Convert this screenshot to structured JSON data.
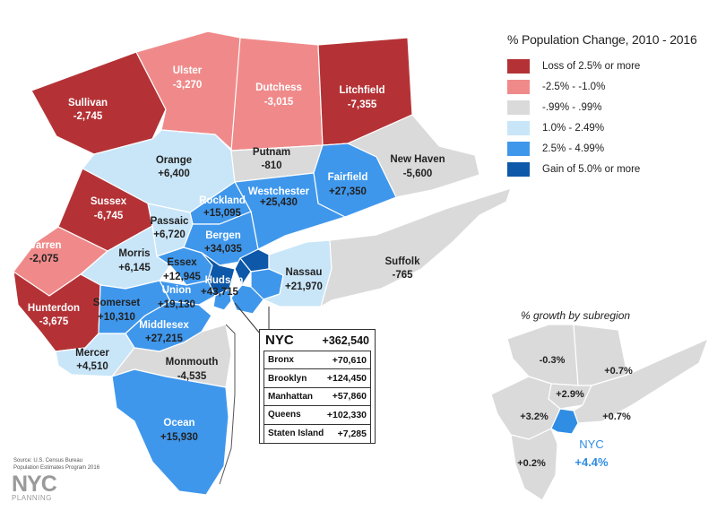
{
  "legend": {
    "title": "% Population Change, 2010 - 2016",
    "items": [
      {
        "label": "Loss of 2.5% or more",
        "color": "#b43236"
      },
      {
        "label": "-2.5% - -1.0%",
        "color": "#f08a8a"
      },
      {
        "label": "-.99% - .99%",
        "color": "#dadada"
      },
      {
        "label": "1.0% - 2.49%",
        "color": "#c9e6f9"
      },
      {
        "label": "2.5% - 4.99%",
        "color": "#3f97ec"
      },
      {
        "label": "Gain of 5.0% or more",
        "color": "#0d58a8"
      }
    ]
  },
  "counties": [
    {
      "name": "Sullivan",
      "value": "-2,745"
    },
    {
      "name": "Ulster",
      "value": "-3,270"
    },
    {
      "name": "Dutchess",
      "value": "-3,015"
    },
    {
      "name": "Litchfield",
      "value": "-7,355"
    },
    {
      "name": "Orange",
      "value": "+6,400"
    },
    {
      "name": "Putnam",
      "value": "-810"
    },
    {
      "name": "New Haven",
      "value": "-5,600"
    },
    {
      "name": "Fairfield",
      "value": "+27,350"
    },
    {
      "name": "Westchester",
      "value": "+25,430"
    },
    {
      "name": "Rockland",
      "value": "+15,095"
    },
    {
      "name": "Sussex",
      "value": "-6,745"
    },
    {
      "name": "Passaic",
      "value": "+6,720"
    },
    {
      "name": "Bergen",
      "value": "+34,035"
    },
    {
      "name": "Warren",
      "value": "-2,075"
    },
    {
      "name": "Morris",
      "value": "+6,145"
    },
    {
      "name": "Essex",
      "value": "+12,945"
    },
    {
      "name": "Hudson",
      "value": "+43,715"
    },
    {
      "name": "Nassau",
      "value": "+21,970"
    },
    {
      "name": "Suffolk",
      "value": "-765"
    },
    {
      "name": "Union",
      "value": "+19,130"
    },
    {
      "name": "Hunterdon",
      "value": "-3,675"
    },
    {
      "name": "Somerset",
      "value": "+10,310"
    },
    {
      "name": "Middlesex",
      "value": "+27,215"
    },
    {
      "name": "Mercer",
      "value": "+4,510"
    },
    {
      "name": "Monmouth",
      "value": "-4,535"
    },
    {
      "name": "Ocean",
      "value": "+15,930"
    }
  ],
  "nyc": {
    "name": "NYC",
    "total": "+362,540",
    "boroughs": [
      {
        "name": "Bronx",
        "value": "+70,610"
      },
      {
        "name": "Brooklyn",
        "value": "+124,450"
      },
      {
        "name": "Manhattan",
        "value": "+57,860"
      },
      {
        "name": "Queens",
        "value": "+102,330"
      },
      {
        "name": "Staten Island",
        "value": "+7,285"
      }
    ]
  },
  "subregion": {
    "title": "% growth by subregion",
    "labels": [
      "-0.3%",
      "+0.7%",
      "+2.9%",
      "+3.2%",
      "+0.7%",
      "+0.2%"
    ],
    "nyc_name": "NYC",
    "nyc_value": "+4.4%"
  },
  "source": {
    "line1": "Source: U.S. Census Bureau",
    "line2": "Population Estimates Program 2016"
  },
  "logo": {
    "top": "NYC",
    "bottom": "PLANNING"
  }
}
